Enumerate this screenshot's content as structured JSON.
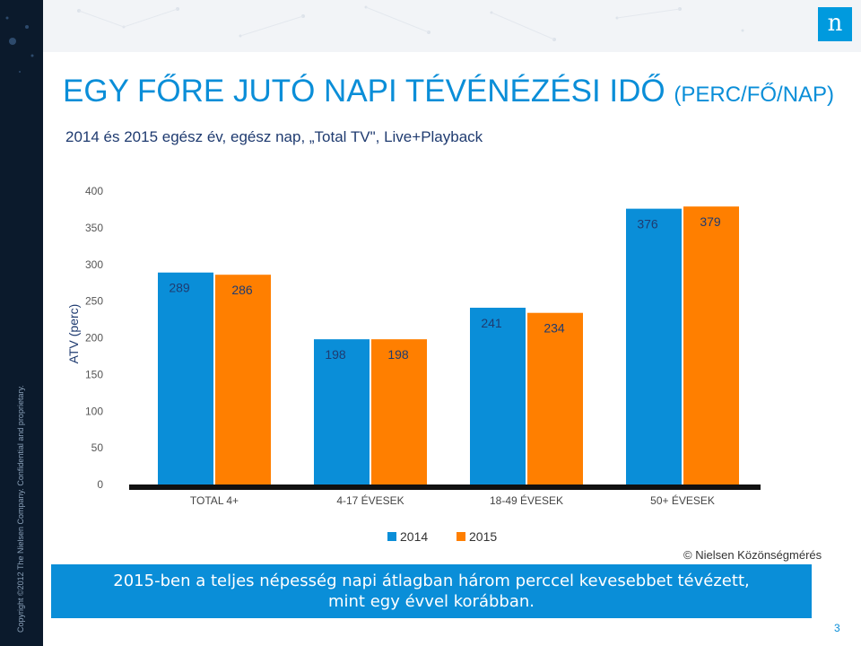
{
  "slide": {
    "title": "EGY FŐRE JUTÓ NAPI TÉVÉNÉZÉSI IDŐ",
    "title_suffix": "(PERC/FŐ/NAP)",
    "subtitle": "2014 és 2015 egész év, egész nap, „Total TV\", Live+Playback",
    "source": "Nielsen Közönségmérés",
    "copyright_symbol": "©",
    "banner_line1": "2015-ben a teljes népesség napi átlagban három perccel kevesebbet tévézett,",
    "banner_line2": "mint egy évvel korábban.",
    "page_number": "3",
    "sidebar_copyright": "Copyright ©2012 The Nielsen Company. Confidential and proprietary.",
    "logo_letter": "n"
  },
  "colors": {
    "series_2014": "#0a8ed8",
    "series_2015": "#ff7f00",
    "title": "#0a8ed8",
    "banner": "#0a8ed8"
  },
  "chart_data": {
    "type": "bar",
    "categories": [
      "TOTAL 4+",
      "4-17 ÉVESEK",
      "18-49 ÉVESEK",
      "50+ ÉVESEK"
    ],
    "series": [
      {
        "name": "2014",
        "values": [
          289,
          198,
          241,
          376
        ]
      },
      {
        "name": "2015",
        "values": [
          286,
          198,
          234,
          379
        ]
      }
    ],
    "ylabel": "ATV (perc)",
    "ylim": [
      0,
      400
    ],
    "yticks": [
      0,
      50,
      100,
      150,
      200,
      250,
      300,
      350,
      400
    ],
    "legend_position": "bottom-center",
    "grid": false
  }
}
